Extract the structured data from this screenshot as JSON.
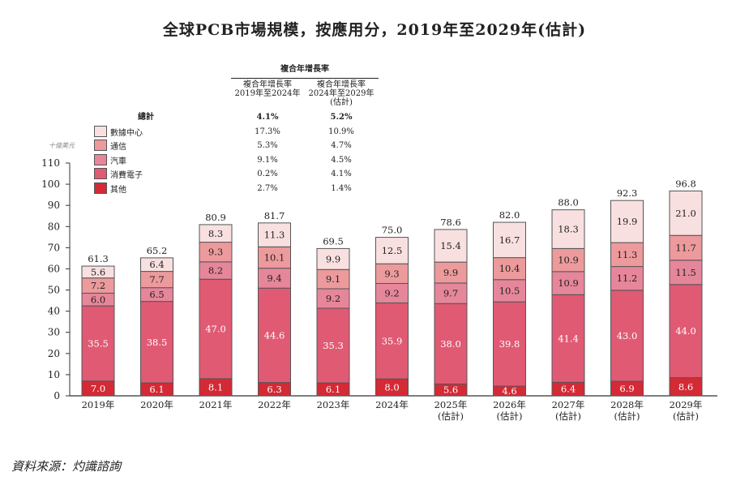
{
  "chart_data": {
    "type": "bar",
    "stacked": true,
    "title": "全球PCB市場規模，按應用分，2019年至2029年(估計)",
    "ylabel": "十億美元",
    "ylim": [
      0,
      110
    ],
    "yticks": [
      0,
      10,
      20,
      30,
      40,
      50,
      60,
      70,
      80,
      90,
      100,
      110
    ],
    "categories": [
      "2019年",
      "2020年",
      "2021年",
      "2022年",
      "2023年",
      "2024年",
      "2025年\n(估計)",
      "2026年\n(估計)",
      "2027年\n(估計)",
      "2028年\n(估計)",
      "2029年\n(估計)"
    ],
    "series": [
      {
        "name": "其他",
        "color": "#d42a36",
        "values": [
          7.0,
          6.1,
          8.1,
          6.3,
          6.1,
          8.0,
          5.6,
          4.6,
          6.4,
          6.9,
          8.6
        ]
      },
      {
        "name": "消費電子",
        "color": "#e05a74",
        "values": [
          35.5,
          38.5,
          47.0,
          44.6,
          35.3,
          35.9,
          38.0,
          39.8,
          41.4,
          43.0,
          44.0
        ]
      },
      {
        "name": "汽車",
        "color": "#e6869a",
        "values": [
          6.0,
          6.5,
          8.2,
          9.4,
          9.2,
          9.2,
          9.7,
          10.5,
          10.9,
          11.2,
          11.5
        ]
      },
      {
        "name": "通信",
        "color": "#ec9a9c",
        "values": [
          7.2,
          7.7,
          9.3,
          10.1,
          9.1,
          9.3,
          9.9,
          10.4,
          10.9,
          11.3,
          11.7
        ]
      },
      {
        "name": "數據中心",
        "color": "#f9e0e0",
        "values": [
          5.6,
          6.4,
          8.3,
          11.3,
          9.9,
          12.5,
          15.4,
          16.7,
          18.3,
          19.9,
          21.0
        ]
      }
    ],
    "totals": [
      61.3,
      65.2,
      80.9,
      81.7,
      69.5,
      75.0,
      78.6,
      82.0,
      88.0,
      92.3,
      96.8
    ],
    "legend_placement": "top-left"
  },
  "cagr_table": {
    "header": "複合年增長率",
    "columns": [
      "複合年增長率\n2019年至2024年",
      "複合年增長率\n2024年至2029年\n(估計)"
    ],
    "rows": [
      {
        "label": "總計",
        "values": [
          "4.1%",
          "5.2%"
        ]
      },
      {
        "label": "數據中心",
        "values": [
          "17.3%",
          "10.9%"
        ]
      },
      {
        "label": "通信",
        "values": [
          "5.3%",
          "4.7%"
        ]
      },
      {
        "label": "汽車",
        "values": [
          "9.1%",
          "4.5%"
        ]
      },
      {
        "label": "消費電子",
        "values": [
          "0.2%",
          "4.1%"
        ]
      },
      {
        "label": "其他",
        "values": [
          "2.7%",
          "1.4%"
        ]
      }
    ]
  },
  "source": "資料來源：灼識諮詢"
}
